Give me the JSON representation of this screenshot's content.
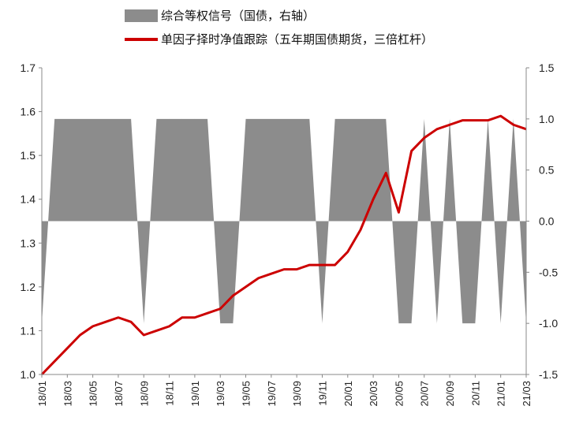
{
  "chart_data": {
    "type": "line",
    "title": "",
    "legend_placement": "top",
    "grid": false,
    "x": [
      "18/01",
      "18/02",
      "18/03",
      "18/04",
      "18/05",
      "18/06",
      "18/07",
      "18/08",
      "18/09",
      "18/10",
      "18/11",
      "18/12",
      "19/01",
      "19/02",
      "19/03",
      "19/04",
      "19/05",
      "19/06",
      "19/07",
      "19/08",
      "19/09",
      "19/10",
      "19/11",
      "19/12",
      "20/01",
      "20/02",
      "20/03",
      "20/04",
      "20/05",
      "20/06",
      "20/07",
      "20/08",
      "20/09",
      "20/10",
      "20/11",
      "20/12",
      "21/01",
      "21/02",
      "21/03"
    ],
    "xticks": [
      "18/01",
      "18/03",
      "18/05",
      "18/07",
      "18/09",
      "18/11",
      "19/01",
      "19/03",
      "19/05",
      "19/07",
      "19/09",
      "19/11",
      "20/01",
      "20/03",
      "20/05",
      "20/07",
      "20/09",
      "20/11",
      "21/01",
      "21/03"
    ],
    "left_axis": {
      "ylim": [
        1.0,
        1.7
      ],
      "ticks": [
        "1.0",
        "1.1",
        "1.2",
        "1.3",
        "1.4",
        "1.5",
        "1.6",
        "1.7"
      ]
    },
    "right_axis": {
      "ylim": [
        -1.5,
        1.5
      ],
      "ticks": [
        "-1.5",
        "-1.0",
        "-0.5",
        "0.0",
        "0.5",
        "1.0",
        "1.5"
      ]
    },
    "series": [
      {
        "name": "综合等权信号（国债，右轴）",
        "kind": "area",
        "axis": "right",
        "color": "#8c8c8c",
        "values": [
          -1,
          1,
          1,
          1,
          1,
          1,
          1,
          1,
          -1,
          1,
          1,
          1,
          1,
          1,
          -1,
          -1,
          1,
          1,
          1,
          1,
          1,
          1,
          -1,
          1,
          1,
          1,
          1,
          1,
          -1,
          -1,
          1,
          -1,
          1,
          -1,
          -1,
          1,
          -1,
          1,
          -1
        ]
      },
      {
        "name": "单因子择时净值跟踪（五年期国债期货，三倍杠杆）",
        "kind": "line",
        "axis": "left",
        "color": "#cc0000",
        "values": [
          1.0,
          1.03,
          1.06,
          1.09,
          1.11,
          1.12,
          1.13,
          1.12,
          1.09,
          1.1,
          1.11,
          1.13,
          1.13,
          1.14,
          1.15,
          1.18,
          1.2,
          1.22,
          1.23,
          1.24,
          1.24,
          1.25,
          1.25,
          1.25,
          1.28,
          1.33,
          1.4,
          1.46,
          1.37,
          1.51,
          1.54,
          1.56,
          1.57,
          1.58,
          1.58,
          1.58,
          1.59,
          1.57,
          1.56
        ]
      }
    ]
  }
}
